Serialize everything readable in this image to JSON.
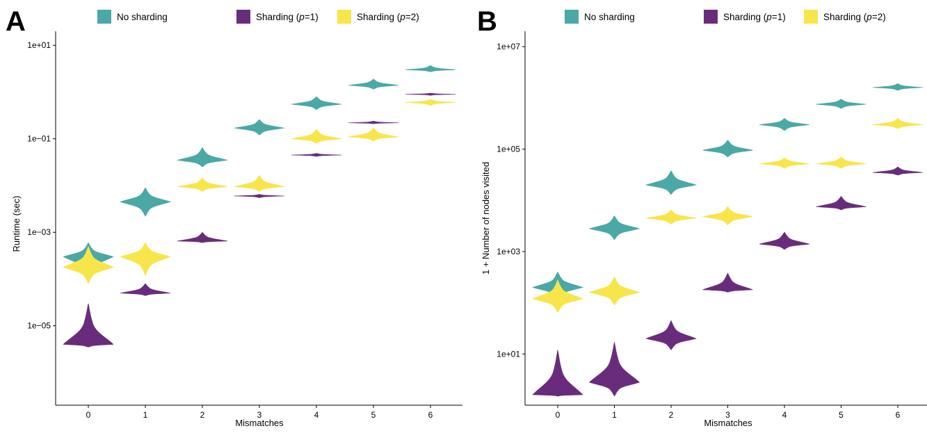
{
  "colors": {
    "no_sharding": "#4aa8a6",
    "sharding_p1": "#692c7c",
    "sharding_p2": "#f8e54a"
  },
  "legend": [
    {
      "key": "no_sharding",
      "prefix": "No sharding",
      "p": "",
      "suffix": ""
    },
    {
      "key": "sharding_p1",
      "prefix": "Sharding (",
      "p": "p",
      "suffix": "=1)"
    },
    {
      "key": "sharding_p2",
      "prefix": "Sharding (",
      "p": "p",
      "suffix": "=2)"
    }
  ],
  "chart_data": [
    {
      "panel": "A",
      "type": "violin",
      "scale": "log10",
      "xlabel": "Mismatches",
      "ylabel": "Runtime (sec)",
      "categories": [
        0,
        1,
        2,
        3,
        4,
        5,
        6
      ],
      "yticks": [
        1e-05,
        0.001,
        0.1,
        10
      ],
      "ytick_labels": [
        "1e−05",
        "1e−03",
        "1e−01",
        "1e+01"
      ],
      "ylim": [
        2e-07,
        20
      ],
      "series": [
        {
          "key": "no_sharding",
          "name": "No sharding",
          "values": [
            0.0003,
            0.0045,
            0.035,
            0.17,
            0.55,
            1.4,
            3.0
          ],
          "low": [
            0.0001,
            0.0022,
            0.025,
            0.12,
            0.42,
            1.15,
            2.7
          ],
          "high": [
            0.0006,
            0.009,
            0.065,
            0.26,
            0.8,
            1.9,
            3.7
          ]
        },
        {
          "key": "sharding_p1",
          "name": "Sharding (p=1)",
          "values": [
            4e-06,
            5e-05,
            0.00065,
            0.006,
            0.045,
            0.22,
            0.9
          ],
          "low": [
            3.5e-06,
            4.4e-05,
            0.0006,
            0.0055,
            0.042,
            0.21,
            0.85
          ],
          "high": [
            3e-05,
            8e-05,
            0.001,
            0.0065,
            0.049,
            0.24,
            0.95
          ]
        },
        {
          "key": "sharding_p2",
          "name": "Sharding (p=2)",
          "values": [
            0.00018,
            0.0003,
            0.0095,
            0.0095,
            0.1,
            0.11,
            0.6
          ],
          "low": [
            8e-05,
            0.00012,
            0.0075,
            0.0075,
            0.08,
            0.09,
            0.52
          ],
          "high": [
            0.0005,
            0.0006,
            0.0145,
            0.0165,
            0.16,
            0.17,
            0.7
          ]
        }
      ]
    },
    {
      "panel": "B",
      "type": "violin",
      "scale": "log10",
      "xlabel": "Mismatches",
      "ylabel": "1 + Number of nodes visited",
      "categories": [
        0,
        1,
        2,
        3,
        4,
        5,
        6
      ],
      "yticks": [
        10,
        1000,
        100000,
        10000000
      ],
      "ytick_labels": [
        "1e+01",
        "1e+03",
        "1e+05",
        "1e+07"
      ],
      "ylim": [
        1,
        20000000
      ],
      "series": [
        {
          "key": "no_sharding",
          "name": "No sharding",
          "values": [
            200,
            2800,
            20000,
            95000,
            300000,
            750000,
            1600000
          ],
          "low": [
            110,
            1700,
            13000,
            70000,
            230000,
            620000,
            1400000
          ],
          "high": [
            400,
            5000,
            38000,
            150000,
            400000,
            950000,
            1900000
          ]
        },
        {
          "key": "sharding_p1",
          "name": "Sharding (p=1)",
          "values": [
            1.6,
            2.8,
            20,
            180,
            1400,
            7500,
            35000
          ],
          "low": [
            1.5,
            1.5,
            12,
            160,
            1100,
            6500,
            31000
          ],
          "high": [
            12,
            17,
            45,
            380,
            2400,
            12000,
            45000
          ]
        },
        {
          "key": "sharding_p2",
          "name": "Sharding (p=2)",
          "values": [
            120,
            160,
            4500,
            4800,
            52000,
            52000,
            300000
          ],
          "low": [
            65,
            90,
            3400,
            3300,
            42000,
            42000,
            250000
          ],
          "high": [
            280,
            320,
            6500,
            7500,
            68000,
            70000,
            400000
          ]
        }
      ]
    }
  ]
}
